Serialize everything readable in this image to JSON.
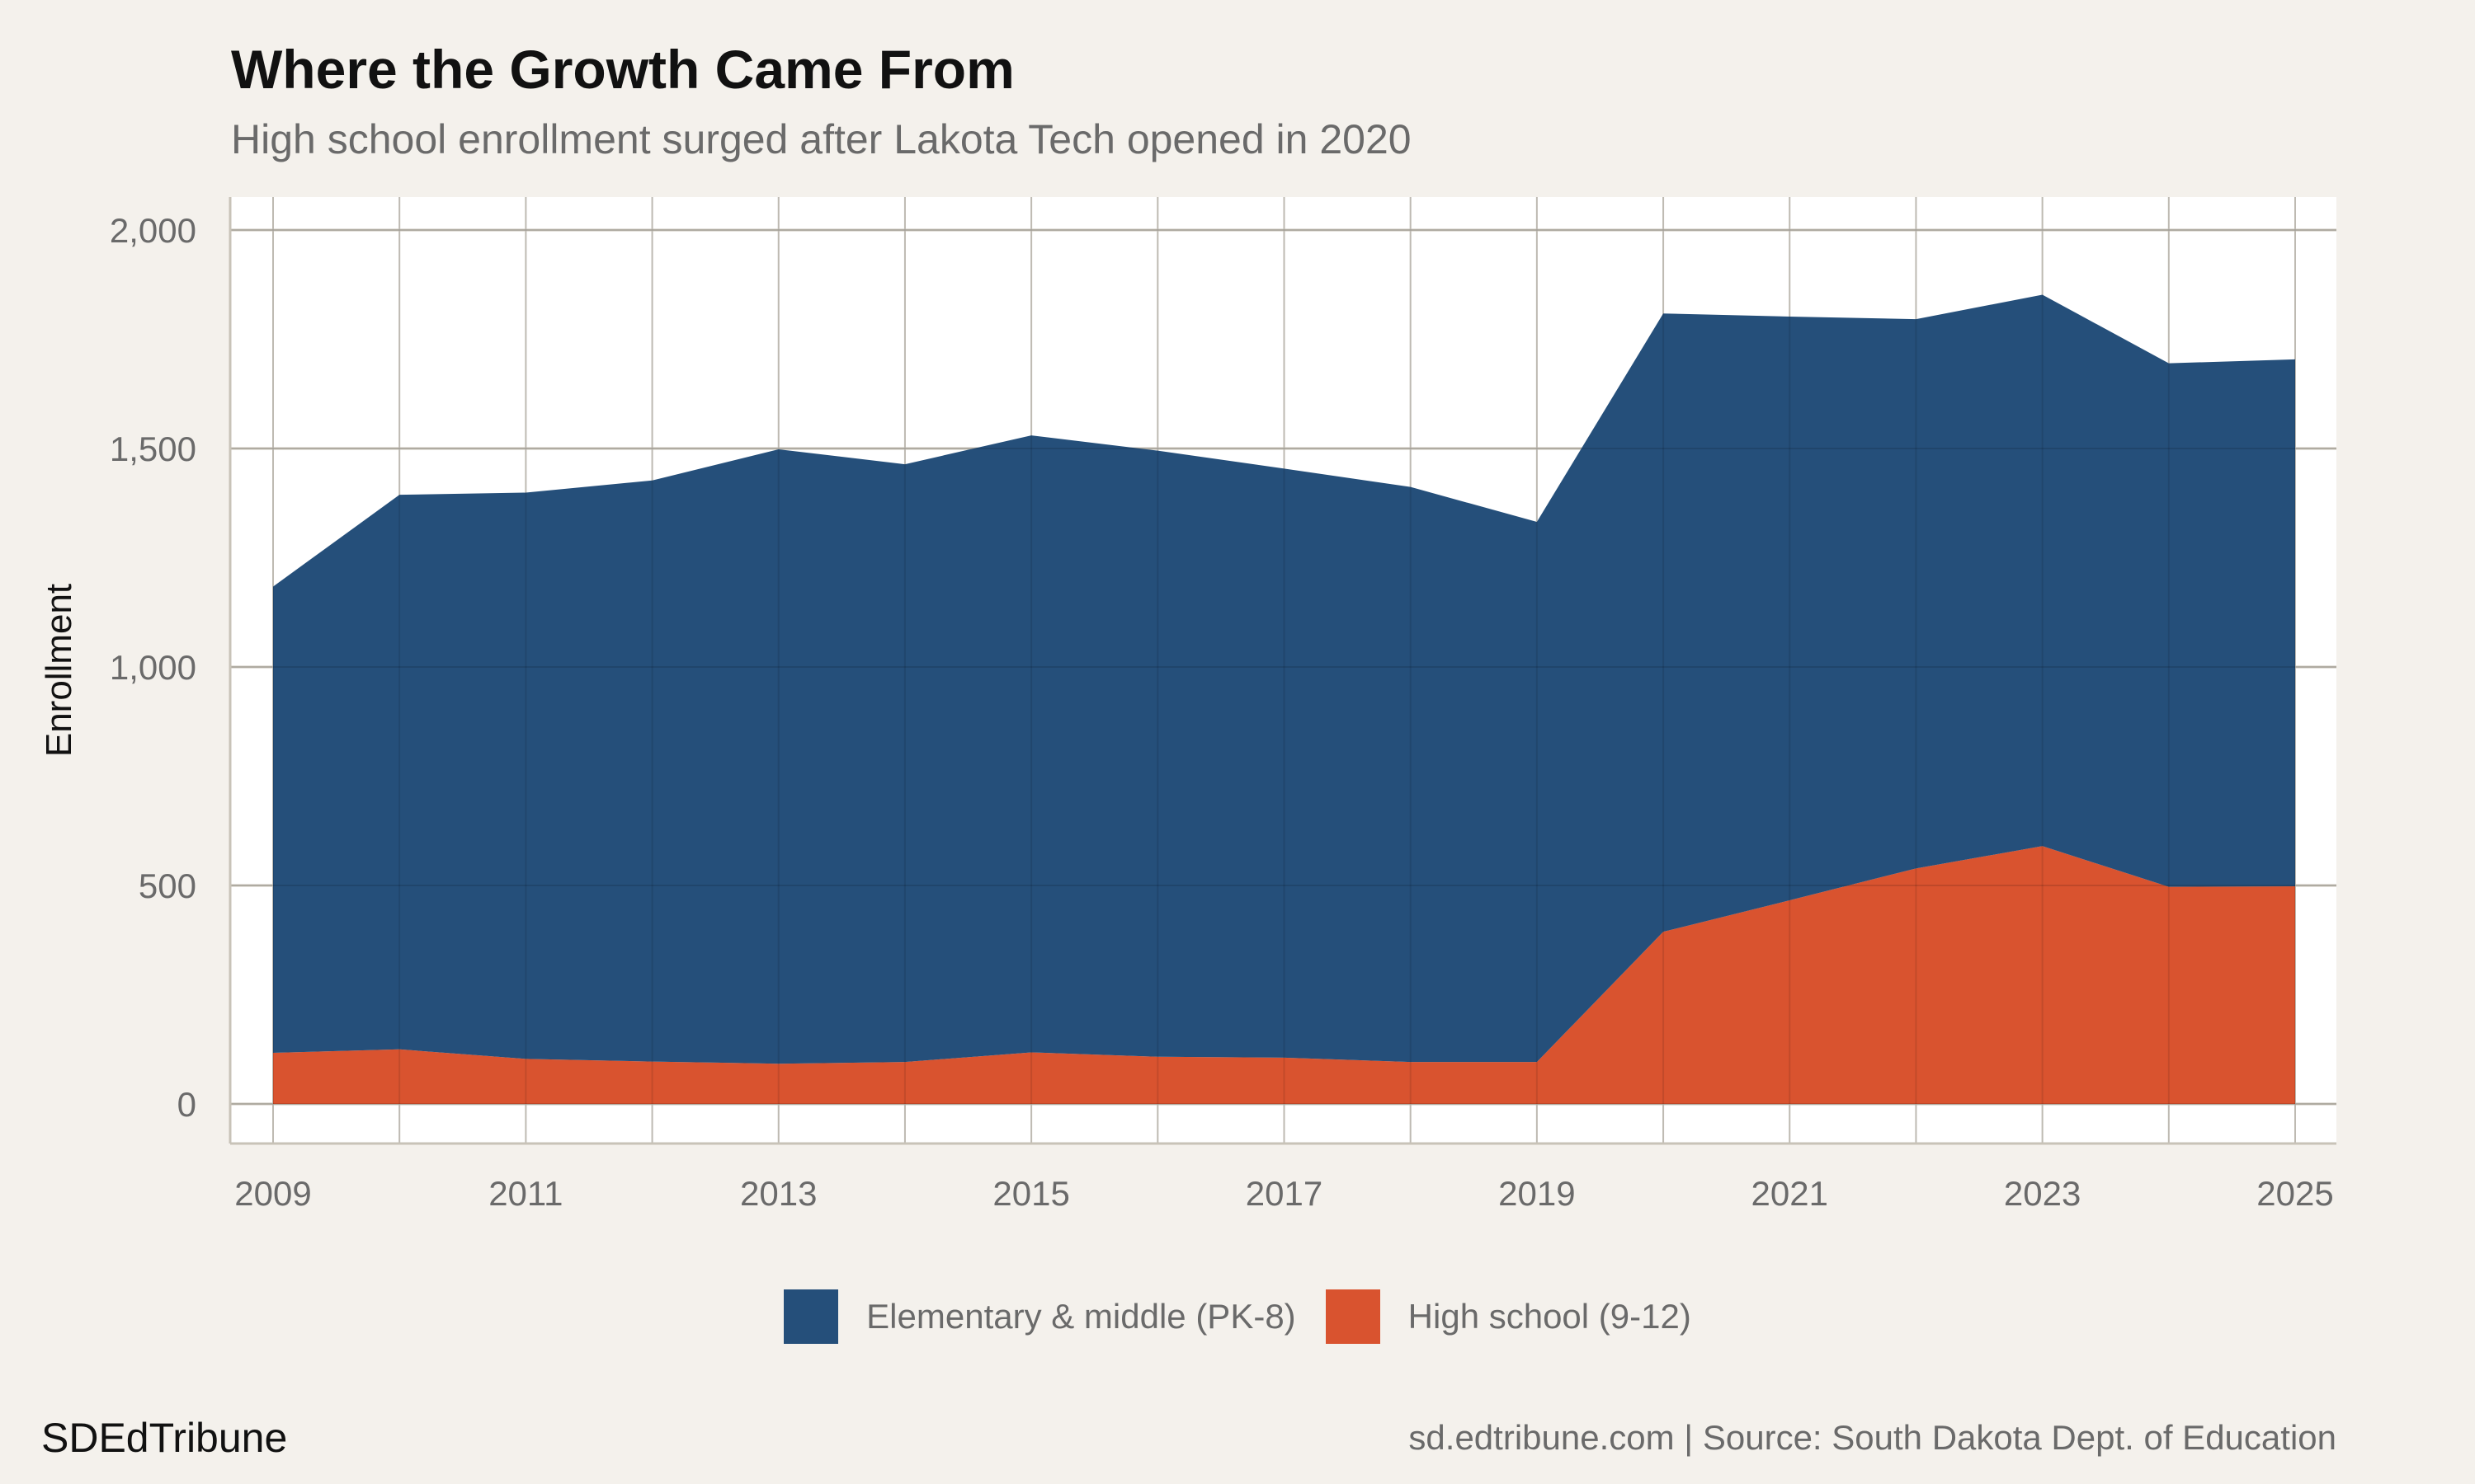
{
  "chart_data": {
    "type": "area",
    "stacked": true,
    "title": "Where the Growth Came From",
    "subtitle": "High school enrollment surged after Lakota Tech opened in 2020",
    "xlabel": "",
    "ylabel": "Enrollment",
    "x": [
      2009,
      2010,
      2011,
      2012,
      2013,
      2014,
      2015,
      2016,
      2017,
      2018,
      2019,
      2020,
      2021,
      2022,
      2023,
      2024,
      2025
    ],
    "x_ticks": [
      "2009",
      "2011",
      "2013",
      "2015",
      "2017",
      "2019",
      "2021",
      "2023",
      "2025"
    ],
    "y_ticks": [
      "0",
      "500",
      "1,000",
      "1,500",
      "2,000"
    ],
    "ylim": [
      0,
      2000
    ],
    "grid": true,
    "legend_position": "bottom",
    "series": [
      {
        "name": "High school (9-12)",
        "color": "#d9532f",
        "values": [
          117,
          125,
          103,
          97,
          92,
          96,
          118,
          108,
          106,
          96,
          96,
          394,
          466,
          539,
          590,
          497,
          498
        ]
      },
      {
        "name": "Elementary & middle (PK-8)",
        "color": "#254f7a",
        "values": [
          1067,
          1269,
          1296,
          1330,
          1406,
          1368,
          1412,
          1387,
          1348,
          1316,
          1236,
          1415,
          1336,
          1257,
          1262,
          1198,
          1206
        ]
      }
    ]
  },
  "footer": {
    "brand": "SDEdTribune",
    "caption": "sd.edtribune.com | Source: South Dakota Dept. of Education"
  }
}
